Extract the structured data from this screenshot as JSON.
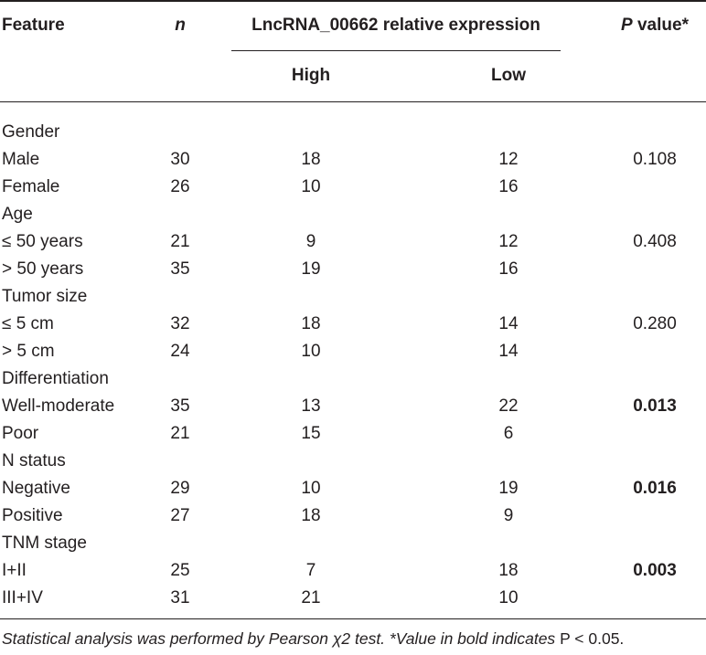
{
  "header": {
    "feature": "Feature",
    "n": "n",
    "expression": "LncRNA_00662 relative expression",
    "high": "High",
    "low": "Low",
    "p_italic": "P",
    "p_rest": " value*"
  },
  "rows": [
    {
      "feature": "Gender",
      "n": "",
      "high": "",
      "low": "",
      "p": ""
    },
    {
      "feature": "Male",
      "n": "30",
      "high": "18",
      "low": "12",
      "p": "0.108"
    },
    {
      "feature": "Female",
      "n": "26",
      "high": "10",
      "low": "16",
      "p": ""
    },
    {
      "feature": "Age",
      "n": "",
      "high": "",
      "low": "",
      "p": ""
    },
    {
      "feature": "≤ 50 years",
      "n": "21",
      "high": "9",
      "low": "12",
      "p": "0.408"
    },
    {
      "feature": "> 50 years",
      "n": "35",
      "high": "19",
      "low": "16",
      "p": ""
    },
    {
      "feature": "Tumor size",
      "n": "",
      "high": "",
      "low": "",
      "p": ""
    },
    {
      "feature": "≤ 5 cm",
      "n": "32",
      "high": "18",
      "low": "14",
      "p": "0.280"
    },
    {
      "feature": "> 5 cm",
      "n": "24",
      "high": "10",
      "low": "14",
      "p": ""
    },
    {
      "feature": "Differentiation",
      "n": "",
      "high": "",
      "low": "",
      "p": ""
    },
    {
      "feature": "Well-moderate",
      "n": "35",
      "high": "13",
      "low": "22",
      "p": "0.013",
      "p_bold": true
    },
    {
      "feature": "Poor",
      "n": "21",
      "high": "15",
      "low": "6",
      "p": ""
    },
    {
      "feature": "N status",
      "n": "",
      "high": "",
      "low": "",
      "p": ""
    },
    {
      "feature": "Negative",
      "n": "29",
      "high": "10",
      "low": "19",
      "p": "0.016",
      "p_bold": true
    },
    {
      "feature": "Positive",
      "n": "27",
      "high": "18",
      "low": "9",
      "p": ""
    },
    {
      "feature": "TNM stage",
      "n": "",
      "high": "",
      "low": "",
      "p": ""
    },
    {
      "feature": "I+II",
      "n": "25",
      "high": "7",
      "low": "18",
      "p": "0.003",
      "p_bold": true
    },
    {
      "feature": "III+IV",
      "n": "31",
      "high": "21",
      "low": "10",
      "p": ""
    }
  ],
  "footnote": {
    "part1": "Statistical analysis was performed by Pearson χ2 test. *Value in bold indicates ",
    "part2": "P < 0.05."
  }
}
